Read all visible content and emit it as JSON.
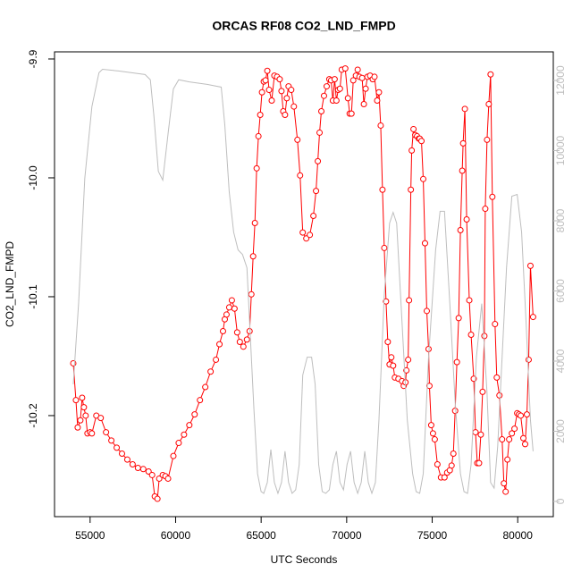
{
  "chart_data": {
    "type": "line",
    "title": "ORCAS RF08 CO2_LND_FMPD",
    "x_label": "UTC Seconds",
    "y_label": "CO2_LND_FMPD",
    "xlim": [
      52920,
      82080
    ],
    "xticks": [
      55000,
      60000,
      65000,
      70000,
      75000,
      80000
    ],
    "ylim": [
      -10.285,
      -9.894
    ],
    "yticks": [
      -10.2,
      -10.1,
      {
        "value": -10,
        "label": "-10.0"
      },
      -9.9
    ],
    "y2lim": [
      -434,
      12816
    ],
    "y2ticks": [
      0,
      2000,
      4000,
      6000,
      8000,
      10000,
      12000
    ],
    "series": [
      {
        "color": "#ff0000",
        "markers": "circle",
        "x": [
          54016,
          54171,
          54275,
          54430,
          54534,
          54637,
          54741,
          54845,
          55000,
          55104,
          55363,
          55622,
          55932,
          56243,
          56554,
          56865,
          57176,
          57486,
          57797,
          58108,
          58419,
          58626,
          58781,
          58937,
          59040,
          59248,
          59403,
          59558,
          59869,
          60180,
          60491,
          60802,
          61112,
          61423,
          61734,
          62045,
          62356,
          62563,
          62770,
          62874,
          62977,
          63133,
          63288,
          63443,
          63599,
          63754,
          63961,
          64169,
          64324,
          64428,
          64531,
          64635,
          64738,
          64842,
          64946,
          65049,
          65153,
          65256,
          65360,
          65464,
          65619,
          65774,
          65930,
          66085,
          66189,
          66292,
          66396,
          66500,
          66603,
          66759,
          66914,
          67121,
          67277,
          67432,
          67639,
          67846,
          68054,
          68209,
          68313,
          68416,
          68520,
          68675,
          68831,
          68986,
          69090,
          69193,
          69297,
          69400,
          69504,
          69608,
          69711,
          69918,
          70074,
          70177,
          70281,
          70385,
          70540,
          70644,
          70747,
          70903,
          71006,
          71110,
          71213,
          71369,
          71524,
          71628,
          71783,
          71887,
          71990,
          72094,
          72198,
          72301,
          72405,
          72508,
          72612,
          72716,
          72819,
          73026,
          73234,
          73337,
          73441,
          73493,
          73596,
          73648,
          73752,
          73803,
          73907,
          74011,
          74114,
          74218,
          74270,
          74373,
          74477,
          74580,
          74684,
          74788,
          74839,
          74943,
          75047,
          75150,
          75306,
          75513,
          75720,
          75875,
          76031,
          76134,
          76238,
          76342,
          76445,
          76549,
          76652,
          76756,
          76808,
          76911,
          77015,
          77170,
          77274,
          77429,
          77533,
          77637,
          77740,
          77844,
          77947,
          78051,
          78103,
          78206,
          78310,
          78414,
          78517,
          78673,
          78776,
          78932,
          79087,
          79191,
          79294,
          79398,
          79501,
          79657,
          79812,
          79968,
          80071,
          80175,
          80330,
          80434,
          80537,
          80641,
          80745,
          80900
        ],
        "values": [
          -10.156,
          -10.187,
          -10.21,
          -10.204,
          -10.185,
          -10.193,
          -10.2,
          -10.215,
          -10.214,
          -10.215,
          -10.2,
          -10.202,
          -10.214,
          -10.221,
          -10.227,
          -10.232,
          -10.237,
          -10.241,
          -10.244,
          -10.245,
          -10.247,
          -10.25,
          -10.268,
          -10.27,
          -10.253,
          -10.25,
          -10.251,
          -10.253,
          -10.234,
          -10.223,
          -10.216,
          -10.208,
          -10.199,
          -10.187,
          -10.176,
          -10.163,
          -10.153,
          -10.14,
          -10.129,
          -10.119,
          -10.115,
          -10.109,
          -10.103,
          -10.11,
          -10.13,
          -10.138,
          -10.142,
          -10.136,
          -10.129,
          -10.098,
          -10.066,
          -10.038,
          -9.992,
          -9.965,
          -9.947,
          -9.928,
          -9.919,
          -9.918,
          -9.91,
          -9.926,
          -9.935,
          -9.914,
          -9.915,
          -9.917,
          -9.927,
          -9.944,
          -9.947,
          -9.933,
          -9.923,
          -9.926,
          -9.94,
          -9.968,
          -9.998,
          -10.046,
          -10.051,
          -10.048,
          -10.032,
          -10.011,
          -9.986,
          -9.962,
          -9.944,
          -9.931,
          -9.923,
          -9.917,
          -9.918,
          -9.935,
          -9.917,
          -9.935,
          -9.926,
          -9.925,
          -9.909,
          -9.908,
          -9.933,
          -9.946,
          -9.946,
          -9.918,
          -9.914,
          -9.909,
          -9.915,
          -9.916,
          -9.938,
          -9.925,
          -9.915,
          -9.914,
          -9.917,
          -9.915,
          -9.935,
          -9.928,
          -9.956,
          -10.01,
          -10.059,
          -10.104,
          -10.138,
          -10.157,
          -10.151,
          -10.158,
          -10.168,
          -10.169,
          -10.171,
          -10.175,
          -10.172,
          -10.162,
          -10.153,
          -10.103,
          -10.01,
          -9.977,
          -9.959,
          -9.964,
          -9.965,
          -9.967,
          -9.967,
          -9.969,
          -10.001,
          -10.055,
          -10.112,
          -10.144,
          -10.175,
          -10.208,
          -10.215,
          -10.22,
          -10.241,
          -10.252,
          -10.252,
          -10.248,
          -10.246,
          -10.242,
          -10.232,
          -10.196,
          -10.155,
          -10.118,
          -10.044,
          -9.994,
          -9.971,
          -9.942,
          -10.035,
          -10.103,
          -10.132,
          -10.169,
          -10.214,
          -10.24,
          -10.24,
          -10.216,
          -10.18,
          -10.133,
          -10.026,
          -9.968,
          -9.938,
          -9.913,
          -10.016,
          -10.123,
          -10.168,
          -10.183,
          -10.22,
          -10.257,
          -10.264,
          -10.237,
          -10.22,
          -10.215,
          -10.211,
          -10.198,
          -10.199,
          -10.2,
          -10.219,
          -10.224,
          -10.199,
          -10.153,
          -10.074,
          -10.117
        ]
      },
      {
        "color": "#bebebe",
        "axis": "y2",
        "x": [
          54016,
          54327,
          54689,
          55104,
          55518,
          55725,
          56658,
          58212,
          58522,
          58730,
          58989,
          59248,
          59558,
          59869,
          60180,
          60802,
          61838,
          62666,
          62874,
          63133,
          63392,
          63651,
          63910,
          64169,
          64376,
          64583,
          64790,
          64997,
          65153,
          65360,
          65567,
          65774,
          65982,
          66189,
          66396,
          66603,
          66810,
          67018,
          67225,
          67432,
          67691,
          67950,
          68157,
          68364,
          68572,
          68779,
          68986,
          69193,
          69400,
          69608,
          69815,
          70022,
          70229,
          70436,
          70644,
          70851,
          71058,
          71265,
          71472,
          71680,
          71887,
          72198,
          72508,
          72716,
          72923,
          73234,
          73544,
          73855,
          74062,
          74270,
          74477,
          74788,
          75202,
          75461,
          75720,
          76031,
          76342,
          76652,
          76860,
          77067,
          77274,
          77585,
          77896,
          78206,
          78414,
          78621,
          78828,
          79087,
          79346,
          79657,
          79968,
          80227,
          80486,
          80745,
          80900
        ],
        "values": [
          3340,
          5640,
          9210,
          11250,
          12220,
          12320,
          12270,
          12170,
          12020,
          10990,
          9410,
          9160,
          10480,
          11760,
          12020,
          11960,
          11890,
          11810,
          10740,
          8830,
          7680,
          7170,
          7040,
          6660,
          4620,
          2580,
          790,
          280,
          230,
          540,
          1480,
          540,
          230,
          540,
          1430,
          540,
          230,
          330,
          1050,
          3600,
          4110,
          4110,
          3340,
          1050,
          280,
          230,
          330,
          1050,
          1430,
          540,
          330,
          1050,
          1430,
          540,
          230,
          540,
          1430,
          540,
          230,
          540,
          2320,
          5890,
          7930,
          8240,
          7930,
          5130,
          2320,
          790,
          280,
          230,
          790,
          4110,
          7170,
          8270,
          8270,
          5640,
          2830,
          790,
          280,
          230,
          1050,
          4110,
          5640,
          3090,
          540,
          380,
          1560,
          4110,
          6660,
          8700,
          8750,
          7680,
          5130,
          2320,
          1430
        ]
      }
    ]
  }
}
